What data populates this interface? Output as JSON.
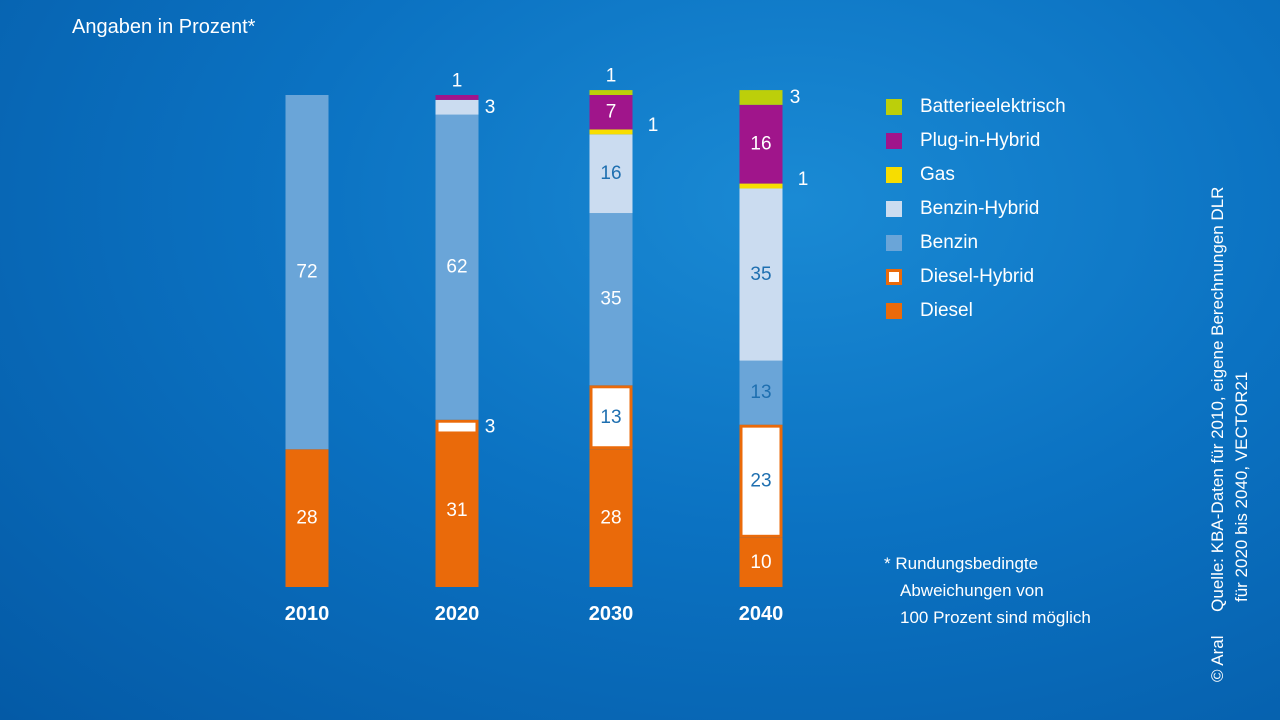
{
  "subtitle": "Angaben in Prozent*",
  "legend": [
    {
      "label": "Batterieelektrisch",
      "color": "#bccf0a",
      "hollow": false
    },
    {
      "label": "Plug-in-Hybrid",
      "color": "#a0158b",
      "hollow": false
    },
    {
      "label": "Gas",
      "color": "#f7dd00",
      "hollow": false
    },
    {
      "label": "Benzin-Hybrid",
      "color": "#cbdcf0",
      "hollow": false
    },
    {
      "label": "Benzin",
      "color": "#6aa5d8",
      "hollow": false
    },
    {
      "label": "Diesel-Hybrid",
      "color": "#ea6a0a",
      "hollow": true
    },
    {
      "label": "Diesel",
      "color": "#ea6a0a",
      "hollow": false
    }
  ],
  "footnote": {
    "line1": "* Rundungsbedingte",
    "line2": "Abweichungen von",
    "line3": "100 Prozent sind möglich"
  },
  "source": {
    "line1": "Quelle: KBA-Daten für 2010, eigene Berechnungen DLR",
    "line2": "für 2020 bis 2040, VECTOR21",
    "copyright": "© Aral"
  },
  "chart_data": {
    "type": "bar",
    "stacked": true,
    "title": "",
    "xlabel": "",
    "ylabel": "",
    "categories": [
      "2010",
      "2020",
      "2030",
      "2040"
    ],
    "series": [
      {
        "name": "Diesel",
        "color": "#ea6a0a",
        "values": [
          28,
          31,
          28,
          10
        ]
      },
      {
        "name": "Diesel-Hybrid",
        "color": "#ea6a0a",
        "hollow": true,
        "values": [
          0,
          3,
          13,
          23
        ]
      },
      {
        "name": "Benzin",
        "color": "#6aa5d8",
        "values": [
          72,
          62,
          35,
          13
        ]
      },
      {
        "name": "Benzin-Hybrid",
        "color": "#cbdcf0",
        "values": [
          0,
          3,
          16,
          35
        ]
      },
      {
        "name": "Gas",
        "color": "#f7dd00",
        "values": [
          0,
          0,
          1,
          1
        ]
      },
      {
        "name": "Plug-in-Hybrid",
        "color": "#a0158b",
        "values": [
          0,
          1,
          7,
          16
        ]
      },
      {
        "name": "Batterieelektrisch",
        "color": "#bccf0a",
        "values": [
          0,
          0,
          1,
          3
        ]
      }
    ],
    "grid": false,
    "legend_position": "right"
  }
}
